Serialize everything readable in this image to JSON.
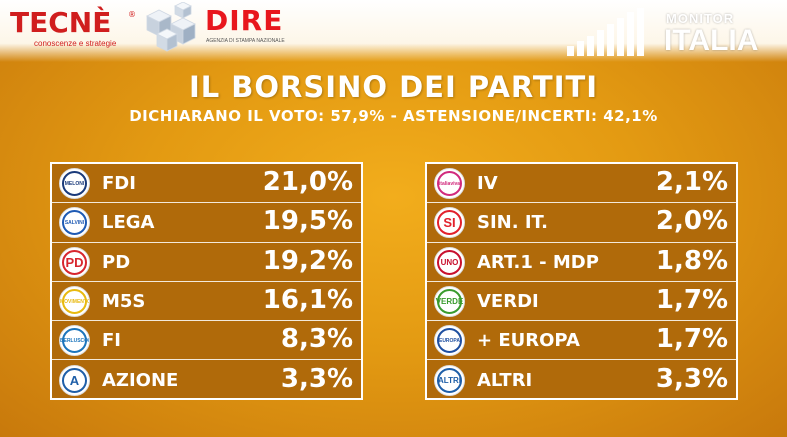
{
  "header": {
    "tecne_logo": "TECNÈ",
    "tecne_tagline": "conoscenze e strategie",
    "dire_logo": "DIRE",
    "dire_tagline": "AGENZIA DI STAMPA NAZIONALE",
    "monitor_label": "MONITOR",
    "italia_label": "ITALIA"
  },
  "chart_data": {
    "type": "table",
    "title": "IL BORSINO DEI PARTITI",
    "subtitle": "DICHIARANO IL VOTO: 57,9% - ASTENSIONE/INCERTI: 42,1%",
    "columns": [
      {
        "rows": [
          {
            "party": "FDI",
            "value": 21.0,
            "label": "21,0%",
            "logo_text": "MELONI",
            "color": "#1a3a7a"
          },
          {
            "party": "LEGA",
            "value": 19.5,
            "label": "19,5%",
            "logo_text": "SALVINI",
            "color": "#1e5ab4"
          },
          {
            "party": "PD",
            "value": 19.2,
            "label": "19,2%",
            "logo_text": "PD",
            "color": "#d7262e"
          },
          {
            "party": "M5S",
            "value": 16.1,
            "label": "16,1%",
            "logo_text": "MOVIMENTO",
            "color": "#e8b90f"
          },
          {
            "party": "FI",
            "value": 8.3,
            "label": "8,3%",
            "logo_text": "BERLUSCONI",
            "color": "#1c75bc"
          },
          {
            "party": "AZIONE",
            "value": 3.3,
            "label": "3,3%",
            "logo_text": "A",
            "color": "#1f5fa8"
          }
        ]
      },
      {
        "rows": [
          {
            "party": "IV",
            "value": 2.1,
            "label": "2,1%",
            "logo_text": "italiaviva",
            "color": "#d12a7d"
          },
          {
            "party": "SIN. IT.",
            "value": 2.0,
            "label": "2,0%",
            "logo_text": "SI",
            "color": "#e2202b"
          },
          {
            "party": "ART.1 - MDP",
            "value": 1.8,
            "label": "1,8%",
            "logo_text": "UNO",
            "color": "#c8102e"
          },
          {
            "party": "VERDI",
            "value": 1.7,
            "label": "1,7%",
            "logo_text": "VERDE",
            "color": "#3a9b2e"
          },
          {
            "party": "+ EUROPA",
            "value": 1.7,
            "label": "1,7%",
            "logo_text": "EUROPA",
            "color": "#1f4fa0"
          },
          {
            "party": "ALTRI",
            "value": 3.3,
            "label": "3,3%",
            "logo_text": "ALTRI",
            "color": "#1f5fa8"
          }
        ]
      }
    ]
  }
}
